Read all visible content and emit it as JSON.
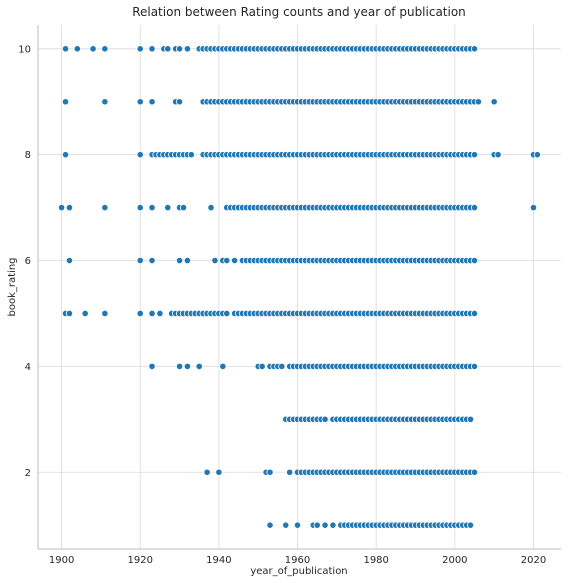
{
  "chart_data": {
    "type": "scatter",
    "title": "Relation between Rating counts and year of publication",
    "xlabel": "year_of_publication",
    "ylabel": "book_rating",
    "xlim": [
      1894,
      2027
    ],
    "ylim": [
      0.55,
      10.45
    ],
    "xticks": [
      1900,
      1920,
      1940,
      1960,
      1980,
      2000,
      2020
    ],
    "yticks": [
      2,
      4,
      6,
      8,
      10
    ],
    "grid": true,
    "color": "#1f77b4",
    "series": [
      {
        "values": [
          {
            "y": 10,
            "ranges": [
              [
                1936,
                2005
              ]
            ],
            "extra": [
              1901,
              1904,
              1908,
              1911,
              1920,
              1923,
              1926,
              1927,
              1929,
              1930,
              1932,
              1935
            ]
          },
          {
            "y": 9,
            "ranges": [
              [
                1936,
                2006
              ]
            ],
            "extra": [
              1901,
              1911,
              1920,
              1923,
              1929,
              1930,
              2010
            ]
          },
          {
            "y": 8,
            "ranges": [
              [
                1923,
                1933
              ],
              [
                1936,
                2005
              ]
            ],
            "extra": [
              1901,
              1920,
              2010,
              2011,
              2020,
              2021
            ]
          },
          {
            "y": 7,
            "ranges": [
              [
                1942,
                2005
              ]
            ],
            "extra": [
              1900,
              1902,
              1911,
              1920,
              1923,
              1927,
              1930,
              1931,
              1938,
              2020
            ]
          },
          {
            "y": 6,
            "ranges": [
              [
                1946,
                2005
              ]
            ],
            "extra": [
              1902,
              1920,
              1923,
              1930,
              1932,
              1939,
              1941,
              1942,
              1944
            ]
          },
          {
            "y": 5,
            "ranges": [
              [
                1928,
                1942
              ],
              [
                1944,
                2005
              ]
            ],
            "extra": [
              1901,
              1902,
              1906,
              1911,
              1920,
              1923,
              1925
            ]
          },
          {
            "y": 4,
            "ranges": [
              [
                1950,
                1951
              ],
              [
                1953,
                1956
              ],
              [
                1958,
                2005
              ]
            ],
            "extra": [
              1923,
              1930,
              1932,
              1935,
              1941
            ]
          },
          {
            "y": 3,
            "ranges": [
              [
                1957,
                1967
              ],
              [
                1969,
                2004
              ]
            ],
            "extra": []
          },
          {
            "y": 2,
            "ranges": [
              [
                1961,
                2005
              ]
            ],
            "extra": [
              1937,
              1940,
              1952,
              1953,
              1958,
              1960
            ]
          },
          {
            "y": 1,
            "ranges": [
              [
                1971,
                2004
              ]
            ],
            "extra": [
              1953,
              1957,
              1960,
              1964,
              1965,
              1967,
              1969
            ]
          }
        ]
      }
    ]
  }
}
